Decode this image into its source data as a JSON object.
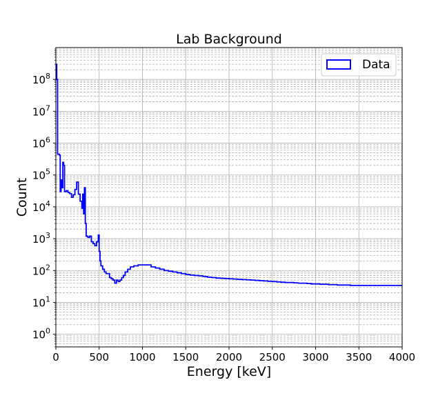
{
  "chart_data": {
    "type": "histogram",
    "title": "Lab Background",
    "xlabel": "Energy [keV]",
    "ylabel": "Count",
    "xlim": [
      0,
      4000
    ],
    "ylim": [
      0.4,
      1000000000
    ],
    "yscale": "log",
    "grid": true,
    "minor_grid": true,
    "legend_position": "top-right",
    "x_ticks": [
      0,
      500,
      1000,
      1500,
      2000,
      2500,
      3000,
      3500,
      4000
    ],
    "y_ticks": [
      1,
      10,
      100,
      1000,
      10000,
      100000,
      1000000,
      10000000,
      100000000
    ],
    "y_tick_exponents": [
      "0",
      "1",
      "2",
      "3",
      "4",
      "5",
      "6",
      "7",
      "8"
    ],
    "series": [
      {
        "name": "Data",
        "color": "#0000ff",
        "points": [
          [
            0,
            300000000
          ],
          [
            10,
            100000000
          ],
          [
            20,
            450000
          ],
          [
            30,
            450000
          ],
          [
            40,
            420000
          ],
          [
            50,
            30000
          ],
          [
            60,
            70000
          ],
          [
            70,
            40000
          ],
          [
            80,
            250000
          ],
          [
            90,
            200000
          ],
          [
            100,
            30000
          ],
          [
            120,
            32000
          ],
          [
            140,
            28000
          ],
          [
            160,
            26000
          ],
          [
            180,
            20000
          ],
          [
            200,
            24000
          ],
          [
            220,
            35000
          ],
          [
            240,
            60000
          ],
          [
            260,
            25000
          ],
          [
            280,
            15000
          ],
          [
            300,
            9000
          ],
          [
            310,
            25000
          ],
          [
            320,
            6000
          ],
          [
            330,
            40000
          ],
          [
            340,
            3000
          ],
          [
            350,
            1200
          ],
          [
            370,
            1100
          ],
          [
            390,
            1200
          ],
          [
            410,
            800
          ],
          [
            430,
            700
          ],
          [
            450,
            600
          ],
          [
            470,
            800
          ],
          [
            490,
            1300
          ],
          [
            500,
            400
          ],
          [
            510,
            200
          ],
          [
            520,
            140
          ],
          [
            540,
            110
          ],
          [
            560,
            90
          ],
          [
            580,
            80
          ],
          [
            600,
            80
          ],
          [
            620,
            60
          ],
          [
            640,
            55
          ],
          [
            660,
            50
          ],
          [
            680,
            40
          ],
          [
            700,
            50
          ],
          [
            720,
            45
          ],
          [
            740,
            50
          ],
          [
            760,
            60
          ],
          [
            780,
            70
          ],
          [
            800,
            90
          ],
          [
            830,
            110
          ],
          [
            860,
            130
          ],
          [
            900,
            140
          ],
          [
            950,
            150
          ],
          [
            1000,
            150
          ],
          [
            1050,
            150
          ],
          [
            1100,
            130
          ],
          [
            1150,
            120
          ],
          [
            1200,
            110
          ],
          [
            1250,
            100
          ],
          [
            1300,
            95
          ],
          [
            1350,
            90
          ],
          [
            1400,
            85
          ],
          [
            1450,
            80
          ],
          [
            1500,
            75
          ],
          [
            1550,
            72
          ],
          [
            1600,
            70
          ],
          [
            1650,
            68
          ],
          [
            1700,
            65
          ],
          [
            1750,
            62
          ],
          [
            1800,
            60
          ],
          [
            1850,
            58
          ],
          [
            1900,
            57
          ],
          [
            1950,
            56
          ],
          [
            2000,
            55
          ],
          [
            2050,
            54
          ],
          [
            2100,
            53
          ],
          [
            2150,
            52
          ],
          [
            2200,
            51
          ],
          [
            2250,
            50
          ],
          [
            2300,
            49
          ],
          [
            2350,
            48
          ],
          [
            2400,
            47
          ],
          [
            2450,
            46
          ],
          [
            2500,
            45
          ],
          [
            2550,
            44
          ],
          [
            2600,
            43
          ],
          [
            2650,
            42
          ],
          [
            2700,
            42
          ],
          [
            2750,
            41
          ],
          [
            2800,
            40
          ],
          [
            2850,
            40
          ],
          [
            2900,
            39
          ],
          [
            2950,
            38
          ],
          [
            3000,
            38
          ],
          [
            3050,
            37
          ],
          [
            3100,
            37
          ],
          [
            3150,
            36
          ],
          [
            3200,
            36
          ],
          [
            3250,
            35
          ],
          [
            3300,
            35
          ],
          [
            3350,
            35
          ],
          [
            3400,
            34
          ],
          [
            3450,
            34
          ],
          [
            3500,
            34
          ],
          [
            3550,
            34
          ],
          [
            3600,
            34
          ],
          [
            3650,
            34
          ],
          [
            3700,
            34
          ],
          [
            3750,
            34
          ],
          [
            3800,
            34
          ],
          [
            3850,
            34
          ],
          [
            3900,
            34
          ],
          [
            3950,
            34
          ],
          [
            4000,
            34
          ]
        ]
      }
    ]
  }
}
